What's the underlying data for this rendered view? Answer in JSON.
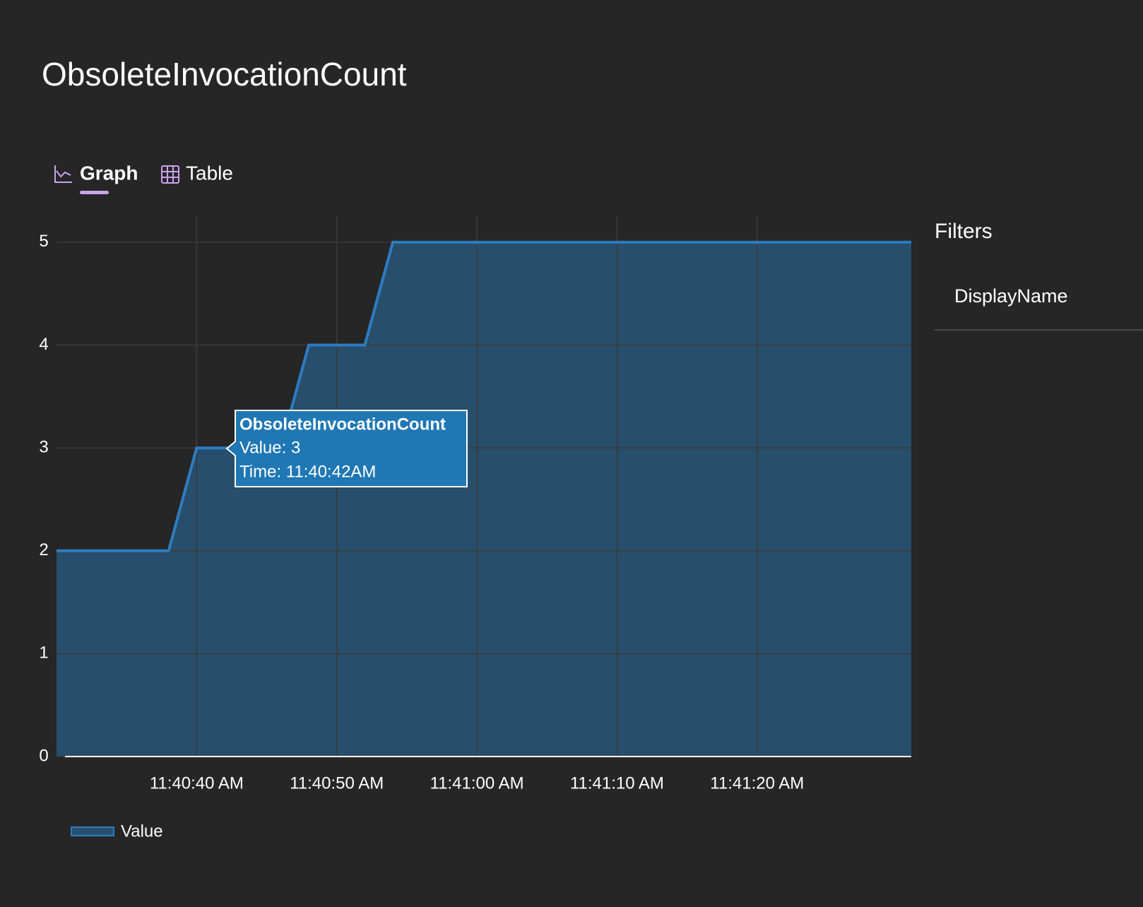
{
  "header": {
    "title": "ObsoleteInvocationCount"
  },
  "tabs": [
    "Graph",
    "Table"
  ],
  "filters": {
    "title": "Filters",
    "items": [
      "DisplayName"
    ]
  },
  "tooltip": {
    "title": "ObsoleteInvocationCount",
    "lines": [
      "Value: 3",
      "Time: 11:40:42AM"
    ]
  },
  "chart_data": {
    "type": "area",
    "x": [
      "11:40:30",
      "11:40:38",
      "11:40:40",
      "11:40:42",
      "11:40:46",
      "11:40:48",
      "11:40:52",
      "11:40:54",
      "11:41:31"
    ],
    "series": [
      {
        "name": "Value",
        "color": "#2e7cc0",
        "fill": "#27506f",
        "values": [
          2,
          2,
          3,
          3,
          3,
          4,
          4,
          5,
          5
        ]
      }
    ],
    "xlim": [
      "11:40:30",
      "11:41:31"
    ],
    "xticks": [
      {
        "value": "11:40:40",
        "label": "11:40:40 AM"
      },
      {
        "value": "11:40:50",
        "label": "11:40:50 AM"
      },
      {
        "value": "11:41:00",
        "label": "11:41:00 AM"
      },
      {
        "value": "11:41:10",
        "label": "11:41:10 AM"
      },
      {
        "value": "11:41:20",
        "label": "11:41:20 AM"
      }
    ],
    "ylim": [
      0,
      5.26
    ],
    "yticks": [
      0,
      1,
      2,
      3,
      4,
      5
    ],
    "grid": true
  }
}
